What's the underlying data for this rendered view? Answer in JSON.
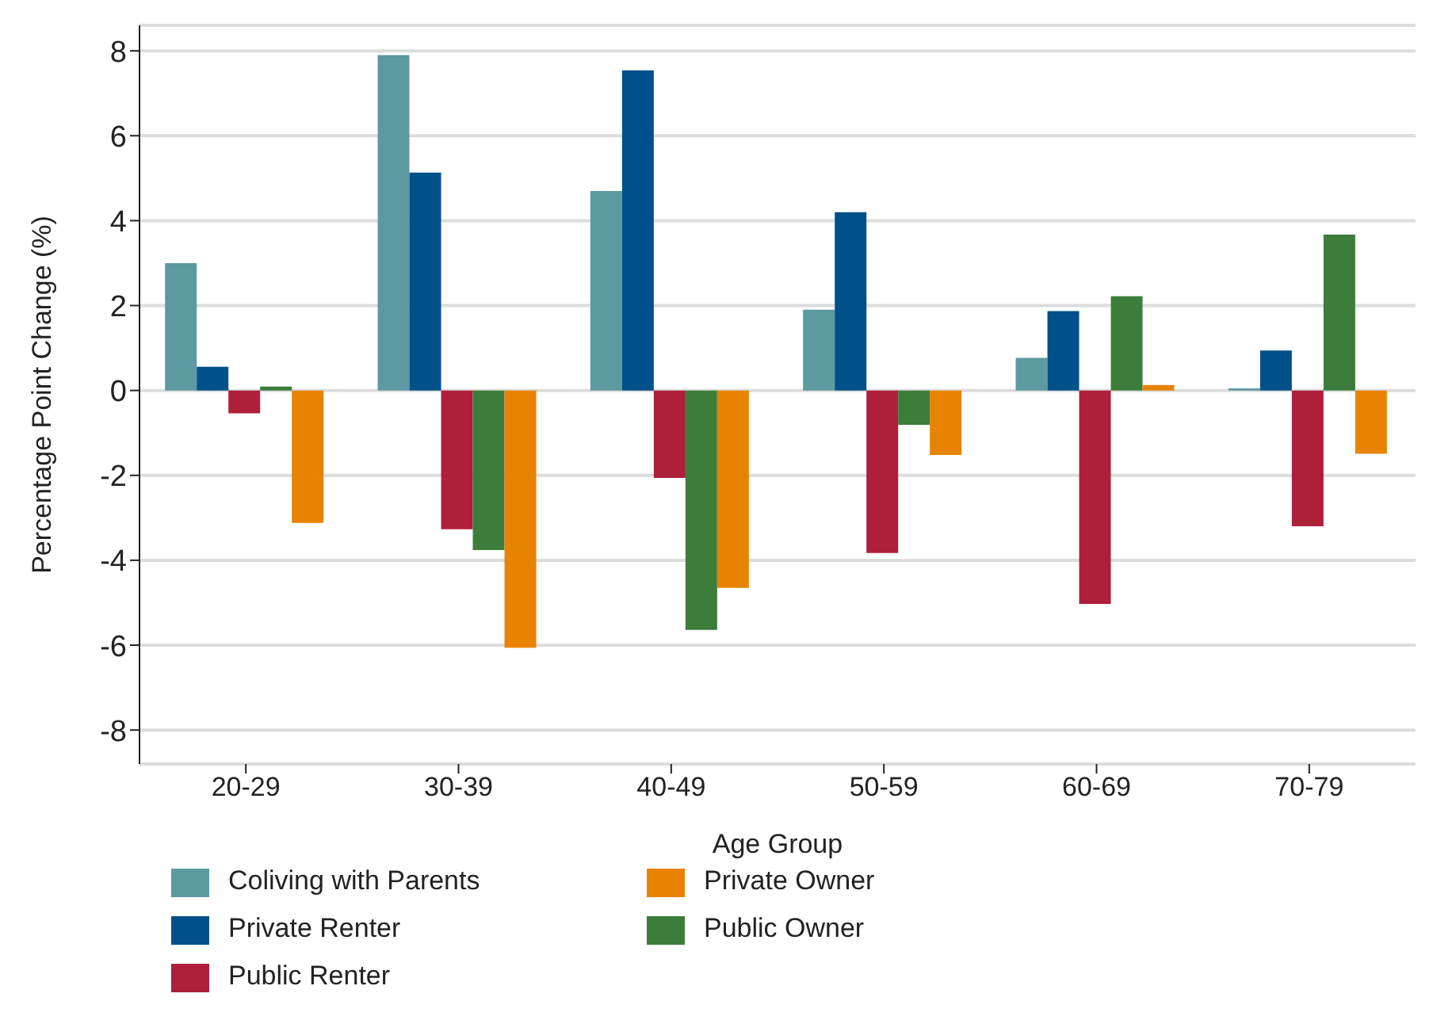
{
  "chart_data": {
    "type": "bar",
    "xlabel": "Age Group",
    "ylabel": "Percentage Point Change (%)",
    "categories": [
      "20-29",
      "30-39",
      "40-49",
      "50-59",
      "60-69",
      "70-79"
    ],
    "series": [
      {
        "name": "Coliving with Parents",
        "color": "#5c99a0",
        "values": [
          3.0,
          7.9,
          4.7,
          1.9,
          0.77,
          0.05
        ]
      },
      {
        "name": "Private Renter",
        "color": "#00508a",
        "values": [
          0.56,
          5.13,
          7.54,
          4.2,
          1.87,
          0.94
        ]
      },
      {
        "name": "Public Renter",
        "color": "#ae1f3a",
        "values": [
          -0.54,
          -3.27,
          -2.06,
          -3.83,
          -5.03,
          -3.2
        ]
      },
      {
        "name": "Public Owner",
        "color": "#3c7d3b",
        "values": [
          0.09,
          -3.76,
          -5.64,
          -0.81,
          2.22,
          3.67
        ]
      },
      {
        "name": "Private Owner",
        "color": "#e78300",
        "values": [
          -3.12,
          -6.06,
          -4.65,
          -1.52,
          0.13,
          -1.49
        ]
      }
    ],
    "ylim": [
      -8.8,
      8.6
    ],
    "yticks": [
      -8,
      -6,
      -4,
      -2,
      0,
      2,
      4,
      6,
      8
    ],
    "grid": "y",
    "legend": "bottom"
  }
}
